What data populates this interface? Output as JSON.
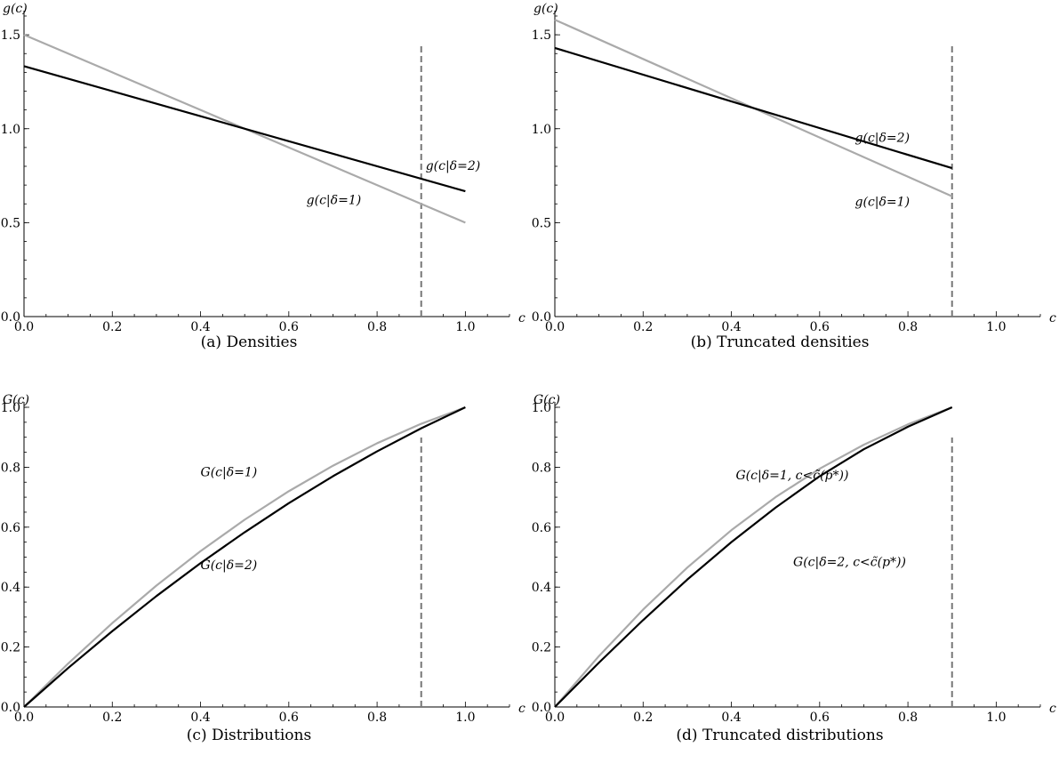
{
  "chart_data": [
    {
      "id": "a",
      "type": "line",
      "caption": "(a) Densities",
      "xlabel": "c",
      "ylabel": "g(c)",
      "xlim": [
        0,
        1.1
      ],
      "ylim": [
        0,
        1.6
      ],
      "xticks": [
        0.0,
        0.2,
        0.4,
        0.6,
        0.8,
        1.0
      ],
      "xtick_labels": [
        "0.0",
        "0.2",
        "0.4",
        "0.6",
        "0.8",
        "1.0"
      ],
      "yticks": [
        0.0,
        0.5,
        1.0,
        1.5
      ],
      "ytick_labels": [
        "0.0",
        "0.5",
        "1.0",
        "1.5"
      ],
      "vline": 0.9,
      "grid": false,
      "series": [
        {
          "name": "g(c|δ=1)",
          "color": "#aaaaaa",
          "x": [
            0,
            1
          ],
          "y": [
            1.5,
            0.5
          ]
        },
        {
          "name": "g(c|δ=2)",
          "color": "#000000",
          "x": [
            0,
            1
          ],
          "y": [
            1.333,
            0.667
          ]
        }
      ],
      "annotations": [
        {
          "text": "g(c|δ=2)",
          "x": 0.91,
          "y": 0.78
        },
        {
          "text": "g(c|δ=1)",
          "x": 0.64,
          "y": 0.6
        }
      ]
    },
    {
      "id": "b",
      "type": "line",
      "caption": "(b) Truncated densities",
      "xlabel": "c",
      "ylabel": "g(c)",
      "xlim": [
        0,
        1.1
      ],
      "ylim": [
        0,
        1.6
      ],
      "xticks": [
        0.0,
        0.2,
        0.4,
        0.6,
        0.8,
        1.0
      ],
      "xtick_labels": [
        "0.0",
        "0.2",
        "0.4",
        "0.6",
        "0.8",
        "1.0"
      ],
      "yticks": [
        0.0,
        0.5,
        1.0,
        1.5
      ],
      "ytick_labels": [
        "0.0",
        "0.5",
        "1.0",
        "1.5"
      ],
      "vline": 0.9,
      "grid": false,
      "series": [
        {
          "name": "g(c|δ=1)",
          "color": "#aaaaaa",
          "x": [
            0,
            0.9
          ],
          "y": [
            1.58,
            0.64
          ]
        },
        {
          "name": "g(c|δ=2)",
          "color": "#000000",
          "x": [
            0,
            0.9
          ],
          "y": [
            1.43,
            0.79
          ]
        }
      ],
      "annotations": [
        {
          "text": "g(c|δ=2)",
          "x": 0.68,
          "y": 0.93
        },
        {
          "text": "g(c|δ=1)",
          "x": 0.68,
          "y": 0.59
        }
      ]
    },
    {
      "id": "c",
      "type": "line",
      "caption": "(c) Distributions",
      "xlabel": "c",
      "ylabel": "G(c)",
      "xlim": [
        0,
        1.1
      ],
      "ylim": [
        0,
        1.0
      ],
      "xticks": [
        0.0,
        0.2,
        0.4,
        0.6,
        0.8,
        1.0
      ],
      "xtick_labels": [
        "0.0",
        "0.2",
        "0.4",
        "0.6",
        "0.8",
        "1.0"
      ],
      "yticks": [
        0.0,
        0.2,
        0.4,
        0.6,
        0.8,
        1.0
      ],
      "ytick_labels": [
        "0.0",
        "0.2",
        "0.4",
        "0.6",
        "0.8",
        "1.0"
      ],
      "vline": 0.9,
      "grid": false,
      "series": [
        {
          "name": "G(c|δ=1)",
          "color": "#aaaaaa",
          "x": [
            0,
            0.1,
            0.2,
            0.3,
            0.4,
            0.5,
            0.6,
            0.7,
            0.8,
            0.9,
            1.0
          ],
          "y": [
            0,
            0.145,
            0.28,
            0.405,
            0.52,
            0.625,
            0.72,
            0.805,
            0.88,
            0.945,
            1.0
          ]
        },
        {
          "name": "G(c|δ=2)",
          "color": "#000000",
          "x": [
            0,
            0.1,
            0.2,
            0.3,
            0.4,
            0.5,
            0.6,
            0.7,
            0.8,
            0.9,
            1.0
          ],
          "y": [
            0,
            0.13,
            0.253,
            0.37,
            0.48,
            0.583,
            0.68,
            0.77,
            0.853,
            0.93,
            1.0
          ]
        }
      ],
      "annotations": [
        {
          "text": "G(c|δ=1)",
          "x": 0.4,
          "y": 0.77
        },
        {
          "text": "G(c|δ=2)",
          "x": 0.4,
          "y": 0.46
        }
      ]
    },
    {
      "id": "d",
      "type": "line",
      "caption": "(d) Truncated distributions",
      "xlabel": "c",
      "ylabel": "G(c)",
      "xlim": [
        0,
        1.1
      ],
      "ylim": [
        0,
        1.0
      ],
      "xticks": [
        0.0,
        0.2,
        0.4,
        0.6,
        0.8,
        1.0
      ],
      "xtick_labels": [
        "0.0",
        "0.2",
        "0.4",
        "0.6",
        "0.8",
        "1.0"
      ],
      "yticks": [
        0.0,
        0.2,
        0.4,
        0.6,
        0.8,
        1.0
      ],
      "ytick_labels": [
        "0.0",
        "0.2",
        "0.4",
        "0.6",
        "0.8",
        "1.0"
      ],
      "vline": 0.9,
      "grid": false,
      "series": [
        {
          "name": "G(c|δ=1, c<c̃(p*))",
          "color": "#aaaaaa",
          "x": [
            0,
            0.1,
            0.2,
            0.3,
            0.4,
            0.5,
            0.6,
            0.7,
            0.8,
            0.9
          ],
          "y": [
            0,
            0.17,
            0.325,
            0.465,
            0.59,
            0.7,
            0.795,
            0.875,
            0.943,
            1.0
          ]
        },
        {
          "name": "G(c|δ=2, c<c̃(p*))",
          "color": "#000000",
          "x": [
            0,
            0.1,
            0.2,
            0.3,
            0.4,
            0.5,
            0.6,
            0.7,
            0.8,
            0.9
          ],
          "y": [
            0,
            0.148,
            0.29,
            0.425,
            0.55,
            0.665,
            0.77,
            0.86,
            0.935,
            1.0
          ]
        }
      ],
      "annotations": [
        {
          "text": "G(c|δ=1, c<c̃(p*))",
          "x": 0.41,
          "y": 0.76
        },
        {
          "text": "G(c|δ=2, c<c̃(p*))",
          "x": 0.54,
          "y": 0.47
        }
      ]
    }
  ]
}
